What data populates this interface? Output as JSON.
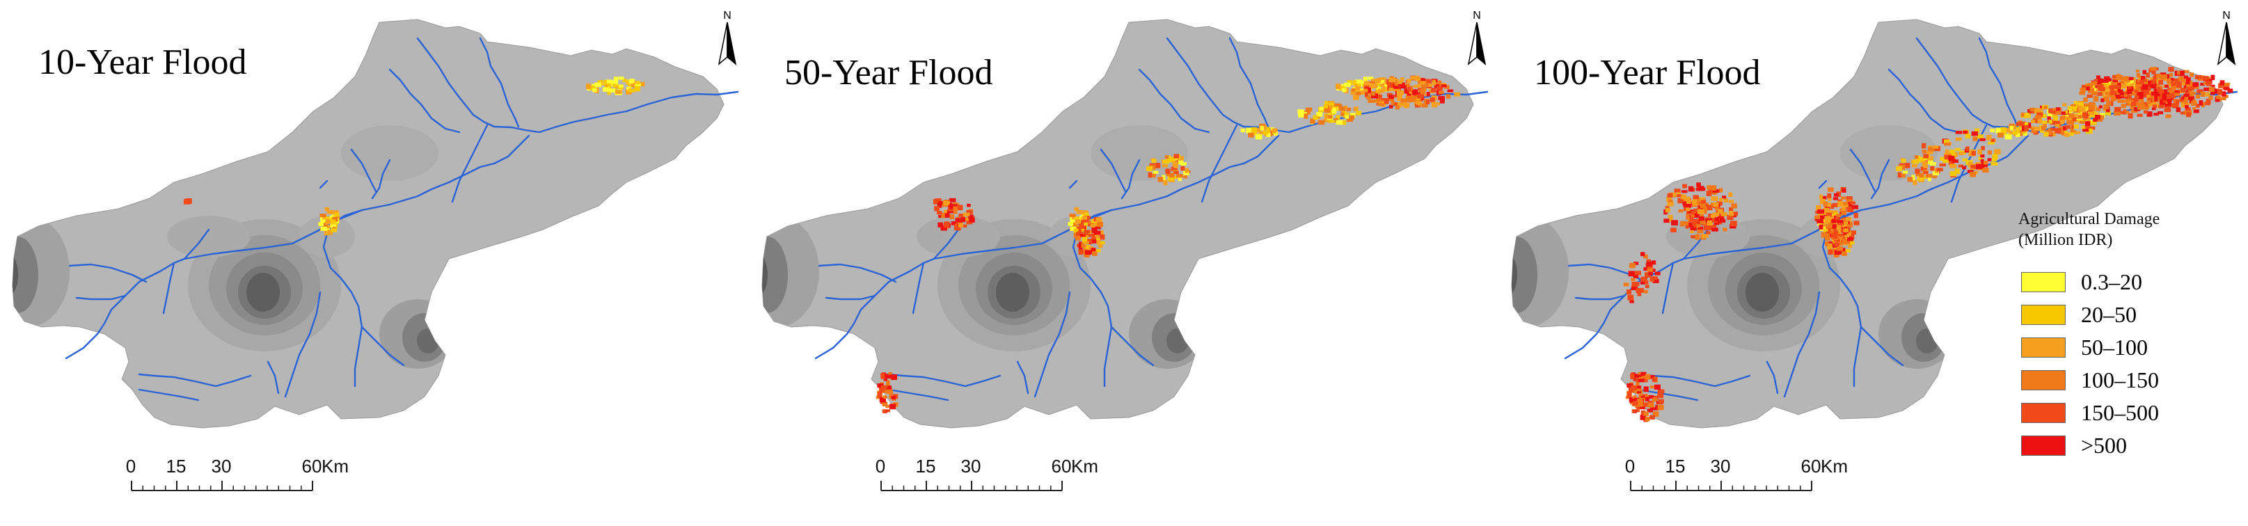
{
  "panels": [
    {
      "title": "10-Year Flood",
      "severity": 1
    },
    {
      "title": "50-Year Flood",
      "severity": 2
    },
    {
      "title": "100-Year Flood",
      "severity": 3
    }
  ],
  "north_arrow": {
    "letter": "N"
  },
  "scale_bar": {
    "ticks": [
      "0",
      "15",
      "30",
      "60"
    ],
    "tick_values": [
      0,
      15,
      30,
      60
    ],
    "unit": "Km"
  },
  "legend": {
    "title_line1": "Agricultural Damage",
    "title_line2": "(Million IDR)",
    "classes": [
      {
        "label": "0.3–20",
        "color": "#ffff33"
      },
      {
        "label": "20–50",
        "color": "#f7c800"
      },
      {
        "label": "50–100",
        "color": "#f7a020"
      },
      {
        "label": "100–150",
        "color": "#f07a1a"
      },
      {
        "label": "150–500",
        "color": "#f04a18"
      },
      {
        "label": ">500",
        "color": "#ee1111"
      }
    ]
  },
  "colors": {
    "basin_fill": "#b6b6b6",
    "elevation_mid": "#9c9c9c",
    "elevation_high": "#7a7a7a",
    "elevation_peak": "#565656",
    "river": "#2a63d6",
    "outline": "#999999"
  }
}
